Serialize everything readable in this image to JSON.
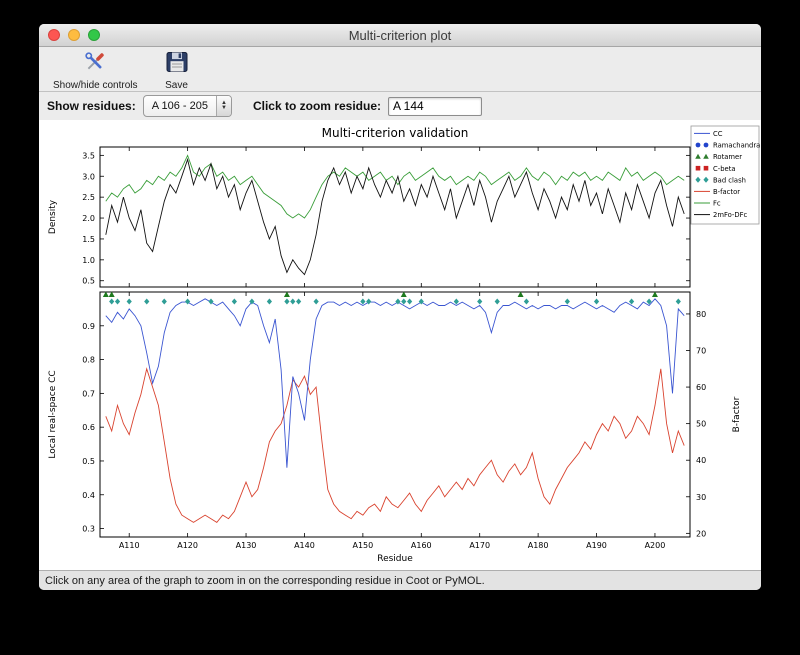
{
  "window": {
    "title": "Multi-criterion plot",
    "toolbar": {
      "show_hide_label": "Show/hide controls",
      "save_label": "Save"
    },
    "controls": {
      "show_residues_label": "Show residues:",
      "residue_range_value": "A 106 - 205",
      "zoom_label": "Click to zoom residue:",
      "zoom_value": "A 144"
    },
    "status_text": "Click on any area of the graph to zoom in on the corresponding residue in Coot or PyMOL."
  },
  "chart_data": {
    "type": "line",
    "title": "Multi-criterion validation",
    "xlabel": "Residue",
    "x_start": 106,
    "xlim": [
      105,
      206
    ],
    "x_ticks": [
      {
        "v": 110,
        "label": "A110"
      },
      {
        "v": 120,
        "label": "A120"
      },
      {
        "v": 130,
        "label": "A130"
      },
      {
        "v": 140,
        "label": "A140"
      },
      {
        "v": 150,
        "label": "A150"
      },
      {
        "v": 160,
        "label": "A160"
      },
      {
        "v": 170,
        "label": "A170"
      },
      {
        "v": 180,
        "label": "A180"
      },
      {
        "v": 190,
        "label": "A190"
      },
      {
        "v": 200,
        "label": "A200"
      }
    ],
    "top_plot": {
      "ylabel": "Density",
      "ylim": [
        0.35,
        3.7
      ],
      "yticks": [
        0.5,
        1.0,
        1.5,
        2.0,
        2.5,
        3.0,
        3.5
      ],
      "series": [
        {
          "name": "Fc",
          "color": "#3a9e3a",
          "values": [
            2.4,
            2.6,
            2.5,
            2.7,
            2.8,
            2.6,
            2.7,
            2.9,
            2.8,
            3.0,
            2.9,
            3.1,
            3.0,
            3.2,
            3.5,
            3.1,
            3.0,
            3.2,
            3.3,
            3.0,
            3.1,
            2.9,
            3.0,
            2.8,
            2.9,
            3.0,
            2.8,
            2.6,
            2.5,
            2.4,
            2.3,
            2.1,
            2.0,
            2.1,
            2.0,
            2.2,
            2.5,
            2.8,
            3.0,
            3.1,
            3.0,
            3.2,
            3.1,
            3.0,
            3.1,
            2.9,
            3.0,
            3.1,
            2.9,
            3.0,
            2.8,
            3.0,
            3.1,
            2.9,
            3.0,
            3.1,
            3.2,
            3.0,
            2.9,
            3.0,
            2.8,
            2.9,
            3.0,
            2.9,
            3.1,
            3.0,
            2.8,
            2.9,
            3.0,
            3.1,
            2.9,
            3.0,
            3.2,
            3.0,
            2.9,
            3.1,
            3.0,
            2.8,
            3.0,
            2.9,
            3.1,
            3.0,
            3.1,
            2.9,
            3.0,
            2.9,
            3.1,
            3.0,
            2.9,
            3.2,
            3.0,
            3.1,
            2.9,
            3.0,
            3.1,
            3.0,
            2.8,
            2.9,
            3.0,
            2.9
          ]
        },
        {
          "name": "2mFo-DFc",
          "color": "#111111",
          "values": [
            1.6,
            2.3,
            1.9,
            2.5,
            2.0,
            1.7,
            2.2,
            1.4,
            1.2,
            1.8,
            2.4,
            2.8,
            2.6,
            3.0,
            3.4,
            2.8,
            3.2,
            2.9,
            3.3,
            2.7,
            3.0,
            2.5,
            2.8,
            2.2,
            2.6,
            2.9,
            2.4,
            1.9,
            1.5,
            1.8,
            1.1,
            0.7,
            1.0,
            0.8,
            0.65,
            1.0,
            1.6,
            2.4,
            2.9,
            3.2,
            2.8,
            3.1,
            2.6,
            3.0,
            2.7,
            3.2,
            2.8,
            2.5,
            2.9,
            2.6,
            3.0,
            2.4,
            2.7,
            2.3,
            2.8,
            2.5,
            3.0,
            2.6,
            2.2,
            2.7,
            2.0,
            2.4,
            2.8,
            2.3,
            2.9,
            2.5,
            1.9,
            2.4,
            2.7,
            3.0,
            2.5,
            2.8,
            3.1,
            2.6,
            2.2,
            2.7,
            2.4,
            2.0,
            2.5,
            2.2,
            2.8,
            2.4,
            2.9,
            2.3,
            2.6,
            2.1,
            2.7,
            2.3,
            1.9,
            2.6,
            2.2,
            2.8,
            2.4,
            2.0,
            2.6,
            2.9,
            2.3,
            1.8,
            2.5,
            2.1
          ]
        }
      ]
    },
    "bottom_plot": {
      "ylabel_left": "Local real-space CC",
      "ylabel_left_color": "#2233cc",
      "ylabel_right": "B-factor",
      "ylabel_right_color": "#cc3322",
      "ylim_left": [
        0.275,
        1.0
      ],
      "yticks_left": [
        0.3,
        0.4,
        0.5,
        0.6,
        0.7,
        0.8,
        0.9
      ],
      "ylim_right": [
        19,
        86
      ],
      "yticks_right": [
        20,
        30,
        40,
        50,
        60,
        70,
        80
      ],
      "cc": {
        "name": "CC",
        "color": "#3a55d1",
        "values": [
          0.93,
          0.91,
          0.94,
          0.92,
          0.95,
          0.93,
          0.9,
          0.82,
          0.73,
          0.78,
          0.88,
          0.94,
          0.96,
          0.97,
          0.97,
          0.96,
          0.97,
          0.98,
          0.97,
          0.96,
          0.97,
          0.95,
          0.93,
          0.9,
          0.95,
          0.97,
          0.96,
          0.9,
          0.85,
          0.92,
          0.77,
          0.48,
          0.75,
          0.7,
          0.62,
          0.8,
          0.92,
          0.96,
          0.97,
          0.97,
          0.96,
          0.97,
          0.96,
          0.97,
          0.96,
          0.97,
          0.97,
          0.96,
          0.97,
          0.96,
          0.97,
          0.96,
          0.95,
          0.96,
          0.97,
          0.96,
          0.97,
          0.96,
          0.96,
          0.97,
          0.96,
          0.97,
          0.96,
          0.95,
          0.96,
          0.94,
          0.88,
          0.94,
          0.96,
          0.96,
          0.97,
          0.96,
          0.95,
          0.96,
          0.95,
          0.96,
          0.96,
          0.95,
          0.96,
          0.96,
          0.95,
          0.96,
          0.97,
          0.96,
          0.95,
          0.96,
          0.95,
          0.94,
          0.96,
          0.97,
          0.96,
          0.95,
          0.97,
          0.96,
          0.98,
          0.96,
          0.9,
          0.7,
          0.95,
          0.93
        ]
      },
      "b_factor": {
        "name": "B-factor",
        "color": "#d9432f",
        "values": [
          52,
          48,
          55,
          50,
          47,
          53,
          58,
          65,
          60,
          55,
          45,
          35,
          28,
          25,
          24,
          23,
          24,
          25,
          24,
          23,
          25,
          24,
          26,
          30,
          34,
          30,
          32,
          38,
          45,
          48,
          50,
          55,
          62,
          60,
          63,
          58,
          60,
          45,
          32,
          28,
          26,
          25,
          24,
          26,
          25,
          27,
          28,
          26,
          30,
          28,
          27,
          29,
          31,
          28,
          26,
          29,
          31,
          33,
          30,
          32,
          34,
          32,
          35,
          33,
          36,
          38,
          40,
          36,
          34,
          37,
          39,
          36,
          38,
          42,
          35,
          30,
          28,
          32,
          35,
          38,
          40,
          42,
          45,
          43,
          47,
          50,
          48,
          52,
          50,
          46,
          48,
          52,
          50,
          47,
          55,
          65,
          50,
          42,
          48,
          44
        ]
      },
      "markers": {
        "bad_clash": {
          "name": "Bad clash",
          "color": "#2f9e96",
          "y": 0.972,
          "residues": [
            107,
            108,
            110,
            113,
            116,
            120,
            124,
            128,
            131,
            134,
            137,
            138,
            139,
            142,
            150,
            151,
            156,
            157,
            158,
            160,
            166,
            170,
            173,
            178,
            185,
            190,
            196,
            199,
            204
          ]
        },
        "rotamer": {
          "name": "Rotamer",
          "color": "#1e7a1e",
          "residues": [
            106,
            107,
            137,
            157,
            177,
            200
          ]
        }
      }
    },
    "legend": [
      {
        "label": "CC",
        "type": "line",
        "color": "#3a55d1"
      },
      {
        "label": "Ramachandran",
        "type": "circles",
        "color": "#2244cc"
      },
      {
        "label": "Rotamer",
        "type": "triangles",
        "color": "#2e7d2e"
      },
      {
        "label": "C-beta",
        "type": "squares",
        "color": "#cc2222"
      },
      {
        "label": "Bad clash",
        "type": "diamonds",
        "color": "#2f9e96"
      },
      {
        "label": "B-factor",
        "type": "line",
        "color": "#d9432f"
      },
      {
        "label": "Fc",
        "type": "line",
        "color": "#3a9e3a"
      },
      {
        "label": "2mFo-DFc",
        "type": "line",
        "color": "#111111"
      }
    ]
  }
}
